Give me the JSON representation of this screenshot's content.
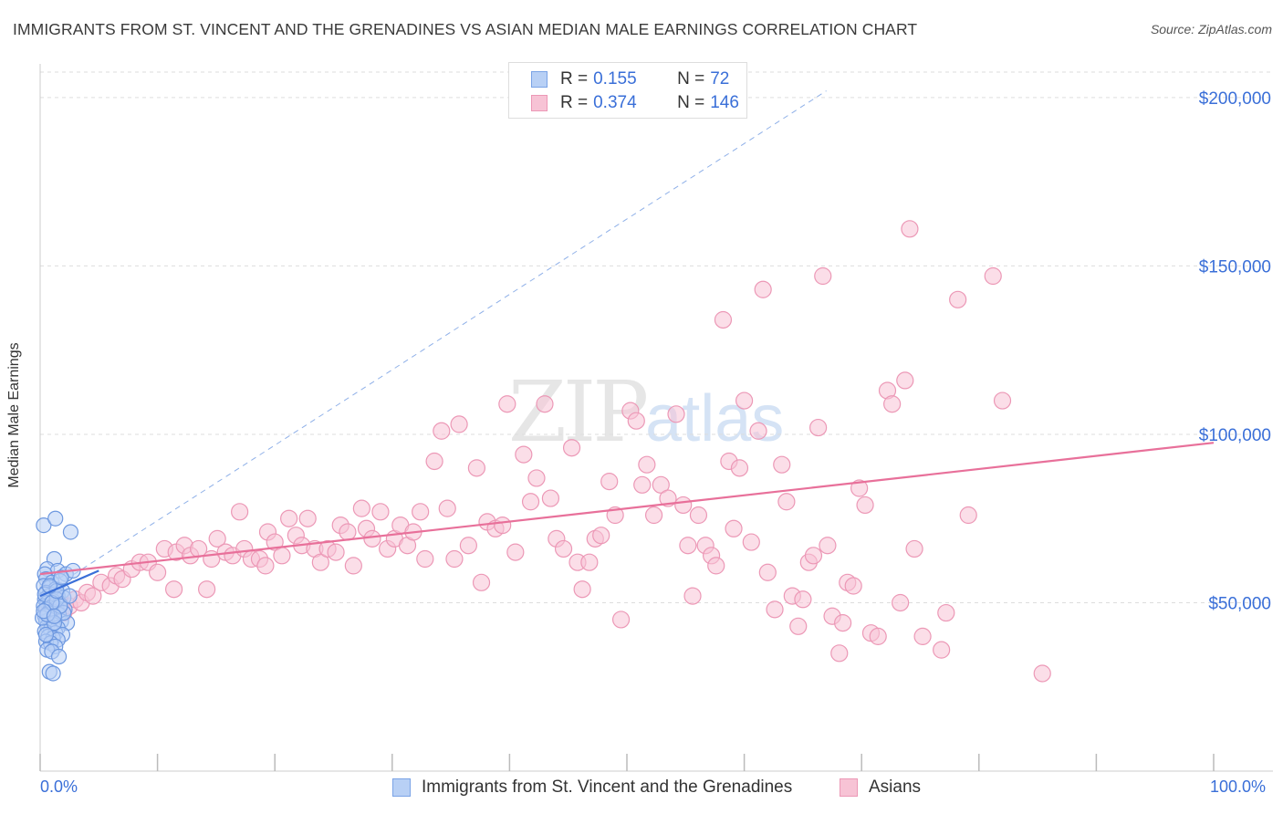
{
  "title": "IMMIGRANTS FROM ST. VINCENT AND THE GRENADINES VS ASIAN MEDIAN MALE EARNINGS CORRELATION CHART",
  "source": "Source: ZipAtlas.com",
  "watermark": {
    "zip": "ZIP",
    "atlas": "atlas"
  },
  "legend": {
    "series1": {
      "r_label": "R =",
      "r_value": "0.155",
      "n_label": "N =",
      "n_value": "72"
    },
    "series2": {
      "r_label": "R =",
      "r_value": "0.374",
      "n_label": "N =",
      "n_value": "146"
    }
  },
  "colors": {
    "blue": "#3a6fd8",
    "blue_fill": "#b8d0f5",
    "blue_line": "#3a6fd8",
    "pink": "#e8709a",
    "pink_fill": "#f7c3d5",
    "pink_line": "#e8709a",
    "grid": "#dddddd"
  },
  "chart_data": {
    "type": "scatter",
    "ylabel": "Median Male Earnings",
    "xlim": [
      0,
      100
    ],
    "ylim": [
      0,
      210000
    ],
    "x_tick_labels": [
      "0.0%",
      "100.0%"
    ],
    "y_ticks": [
      50000,
      100000,
      150000,
      200000
    ],
    "y_tick_labels": [
      "$50,000",
      "$100,000",
      "$150,000",
      "$200,000"
    ],
    "grid": true,
    "legend_position": "top-center",
    "series": [
      {
        "name": "Immigrants from St. Vincent and the Grenadines",
        "color": "blue",
        "trend": {
          "x": [
            0,
            5
          ],
          "y": [
            52000,
            59500
          ]
        },
        "reference_line": {
          "x": [
            0,
            67
          ],
          "y": [
            52000,
            202000
          ]
        },
        "points": [
          [
            0.3,
            73000
          ],
          [
            1.3,
            75000
          ],
          [
            2.6,
            71000
          ],
          [
            1.2,
            63000
          ],
          [
            0.6,
            60000
          ],
          [
            1.5,
            59500
          ],
          [
            0.4,
            58500
          ],
          [
            2.2,
            58500
          ],
          [
            2.8,
            59500
          ],
          [
            0.5,
            57000
          ],
          [
            1.0,
            56000
          ],
          [
            1.7,
            56500
          ],
          [
            0.3,
            55000
          ],
          [
            0.8,
            54500
          ],
          [
            1.3,
            54000
          ],
          [
            1.9,
            53500
          ],
          [
            0.5,
            53000
          ],
          [
            1.0,
            52500
          ],
          [
            0.7,
            52000
          ],
          [
            1.5,
            52000
          ],
          [
            2.0,
            51500
          ],
          [
            0.4,
            51000
          ],
          [
            1.1,
            50500
          ],
          [
            0.6,
            50000
          ],
          [
            1.7,
            49500
          ],
          [
            0.3,
            49000
          ],
          [
            0.9,
            48500
          ],
          [
            1.4,
            48500
          ],
          [
            2.1,
            48000
          ],
          [
            0.5,
            48000
          ],
          [
            1.0,
            47500
          ],
          [
            0.7,
            47000
          ],
          [
            1.6,
            46500
          ],
          [
            0.4,
            46000
          ],
          [
            1.2,
            45500
          ],
          [
            0.8,
            45000
          ],
          [
            1.8,
            44500
          ],
          [
            2.3,
            44000
          ],
          [
            0.5,
            44500
          ],
          [
            1.1,
            43500
          ],
          [
            0.6,
            43000
          ],
          [
            1.5,
            42500
          ],
          [
            0.9,
            42000
          ],
          [
            0.4,
            41500
          ],
          [
            1.3,
            41000
          ],
          [
            1.9,
            40500
          ],
          [
            0.7,
            40000
          ],
          [
            1.1,
            39500
          ],
          [
            1.5,
            39000
          ],
          [
            0.5,
            38500
          ],
          [
            0.9,
            38000
          ],
          [
            1.3,
            37000
          ],
          [
            0.6,
            36000
          ],
          [
            1.0,
            35500
          ],
          [
            1.6,
            34000
          ],
          [
            0.8,
            29500
          ],
          [
            1.1,
            29000
          ],
          [
            0.4,
            52500
          ],
          [
            1.4,
            51000
          ],
          [
            2.0,
            47000
          ],
          [
            0.2,
            45500
          ],
          [
            1.2,
            44000
          ],
          [
            1.7,
            49000
          ],
          [
            0.6,
            46500
          ],
          [
            1.0,
            50000
          ],
          [
            0.3,
            47500
          ],
          [
            1.4,
            53500
          ],
          [
            2.5,
            52000
          ],
          [
            0.8,
            55000
          ],
          [
            1.8,
            57500
          ],
          [
            0.5,
            40500
          ],
          [
            1.2,
            46000
          ]
        ]
      },
      {
        "name": "Asians",
        "color": "pink",
        "trend": {
          "x": [
            0,
            100
          ],
          "y": [
            58500,
            97500
          ]
        },
        "points": [
          [
            0.8,
            48000
          ],
          [
            1.5,
            50000
          ],
          [
            2.0,
            47000
          ],
          [
            2.5,
            49000
          ],
          [
            3.0,
            51000
          ],
          [
            3.5,
            50000
          ],
          [
            4.0,
            53000
          ],
          [
            4.5,
            52000
          ],
          [
            5.2,
            56000
          ],
          [
            6.0,
            55000
          ],
          [
            6.5,
            58000
          ],
          [
            7.0,
            57000
          ],
          [
            7.8,
            60000
          ],
          [
            8.5,
            62000
          ],
          [
            9.2,
            62000
          ],
          [
            10.0,
            59000
          ],
          [
            10.6,
            66000
          ],
          [
            11.4,
            54000
          ],
          [
            11.6,
            65000
          ],
          [
            12.3,
            67000
          ],
          [
            12.8,
            64000
          ],
          [
            13.5,
            66000
          ],
          [
            14.2,
            54000
          ],
          [
            14.6,
            63000
          ],
          [
            15.1,
            69000
          ],
          [
            15.8,
            65000
          ],
          [
            16.4,
            64000
          ],
          [
            17.0,
            77000
          ],
          [
            17.4,
            66000
          ],
          [
            18.0,
            63000
          ],
          [
            18.7,
            63000
          ],
          [
            19.2,
            61000
          ],
          [
            19.4,
            71000
          ],
          [
            20.0,
            68000
          ],
          [
            20.6,
            64000
          ],
          [
            21.2,
            75000
          ],
          [
            21.8,
            70000
          ],
          [
            22.3,
            67000
          ],
          [
            22.8,
            75000
          ],
          [
            23.4,
            66000
          ],
          [
            23.9,
            62000
          ],
          [
            24.5,
            66000
          ],
          [
            25.2,
            65000
          ],
          [
            25.6,
            73000
          ],
          [
            26.2,
            71000
          ],
          [
            26.7,
            61000
          ],
          [
            27.4,
            78000
          ],
          [
            27.8,
            72000
          ],
          [
            28.3,
            69000
          ],
          [
            29.0,
            77000
          ],
          [
            29.6,
            66000
          ],
          [
            30.2,
            69000
          ],
          [
            30.7,
            73000
          ],
          [
            31.3,
            67000
          ],
          [
            31.8,
            71000
          ],
          [
            32.4,
            77000
          ],
          [
            32.8,
            63000
          ],
          [
            33.6,
            92000
          ],
          [
            34.2,
            101000
          ],
          [
            34.7,
            78000
          ],
          [
            35.3,
            63000
          ],
          [
            35.7,
            103000
          ],
          [
            36.5,
            67000
          ],
          [
            37.2,
            90000
          ],
          [
            37.6,
            56000
          ],
          [
            38.1,
            74000
          ],
          [
            38.8,
            72000
          ],
          [
            39.4,
            73000
          ],
          [
            39.8,
            109000
          ],
          [
            40.5,
            65000
          ],
          [
            41.2,
            94000
          ],
          [
            41.8,
            80000
          ],
          [
            42.3,
            87000
          ],
          [
            43.0,
            109000
          ],
          [
            43.5,
            81000
          ],
          [
            44.0,
            69000
          ],
          [
            44.6,
            66000
          ],
          [
            45.3,
            96000
          ],
          [
            45.8,
            62000
          ],
          [
            46.2,
            54000
          ],
          [
            46.8,
            62000
          ],
          [
            47.3,
            69000
          ],
          [
            47.8,
            70000
          ],
          [
            48.5,
            86000
          ],
          [
            49.0,
            76000
          ],
          [
            49.5,
            45000
          ],
          [
            50.3,
            107000
          ],
          [
            50.8,
            104000
          ],
          [
            51.3,
            85000
          ],
          [
            51.7,
            91000
          ],
          [
            52.3,
            76000
          ],
          [
            52.9,
            85000
          ],
          [
            53.5,
            81000
          ],
          [
            54.2,
            106000
          ],
          [
            54.8,
            79000
          ],
          [
            55.2,
            67000
          ],
          [
            55.6,
            52000
          ],
          [
            56.1,
            76000
          ],
          [
            56.7,
            67000
          ],
          [
            57.2,
            64000
          ],
          [
            57.6,
            61000
          ],
          [
            58.2,
            134000
          ],
          [
            58.7,
            92000
          ],
          [
            59.1,
            72000
          ],
          [
            59.6,
            90000
          ],
          [
            60.0,
            110000
          ],
          [
            60.6,
            68000
          ],
          [
            61.2,
            101000
          ],
          [
            61.6,
            143000
          ],
          [
            62.0,
            59000
          ],
          [
            62.6,
            48000
          ],
          [
            63.2,
            91000
          ],
          [
            63.6,
            80000
          ],
          [
            64.1,
            52000
          ],
          [
            64.6,
            43000
          ],
          [
            65.0,
            51000
          ],
          [
            65.5,
            62000
          ],
          [
            65.9,
            64000
          ],
          [
            66.3,
            102000
          ],
          [
            66.7,
            147000
          ],
          [
            67.1,
            67000
          ],
          [
            67.5,
            46000
          ],
          [
            68.1,
            35000
          ],
          [
            68.8,
            56000
          ],
          [
            69.3,
            55000
          ],
          [
            69.8,
            84000
          ],
          [
            70.3,
            79000
          ],
          [
            70.8,
            41000
          ],
          [
            71.4,
            40000
          ],
          [
            72.2,
            113000
          ],
          [
            72.6,
            109000
          ],
          [
            73.3,
            50000
          ],
          [
            73.7,
            116000
          ],
          [
            74.1,
            161000
          ],
          [
            74.5,
            66000
          ],
          [
            75.2,
            40000
          ],
          [
            76.8,
            36000
          ],
          [
            78.2,
            140000
          ],
          [
            79.1,
            76000
          ],
          [
            81.2,
            147000
          ],
          [
            82.0,
            110000
          ],
          [
            85.4,
            29000
          ],
          [
            77.2,
            47000
          ],
          [
            68.4,
            44000
          ]
        ]
      }
    ]
  }
}
